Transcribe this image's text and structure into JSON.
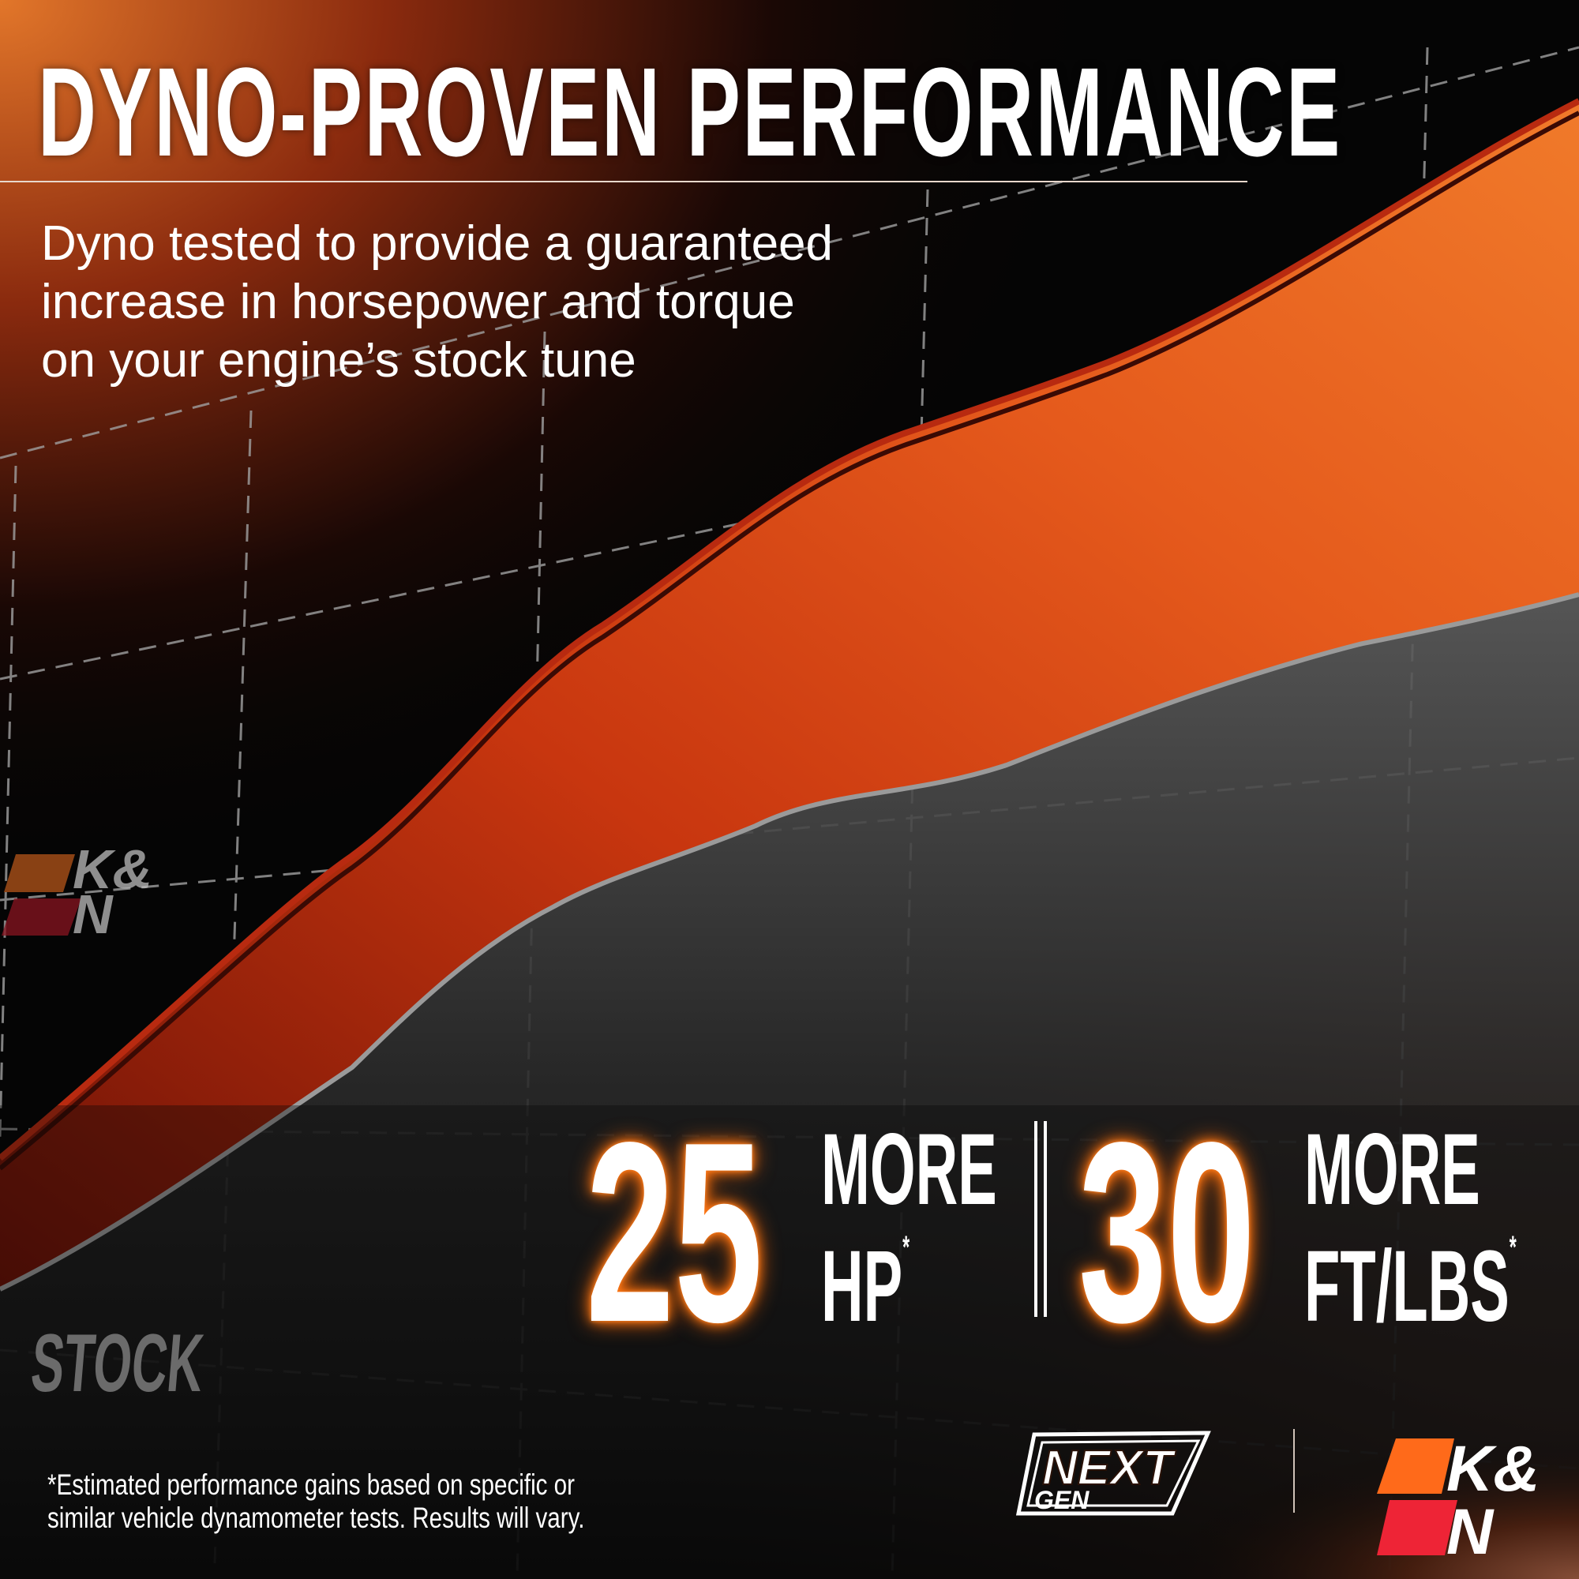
{
  "header": {
    "title": "DYNO-PROVEN PERFORMANCE",
    "subtitle_lines": [
      "Dyno tested to provide a guaranteed",
      "increase in horsepower and torque",
      "on your engine’s stock tune"
    ]
  },
  "chart": {
    "stock_label": "STOCK",
    "colors": {
      "upgrade_band": "#e2461a",
      "stock_band": "#3a3a3a",
      "grid": "#9a9a9a"
    }
  },
  "stats": [
    {
      "value": "25",
      "line1": "MORE",
      "line2": "HP",
      "mark": "*"
    },
    {
      "value": "30",
      "line1": "MORE",
      "line2": "FT/LBS",
      "mark": "*"
    }
  ],
  "footnote": {
    "line1": "*Estimated performance gains based on specific or",
    "line2": "similar vehicle dynamometer tests. Results will vary."
  },
  "logos": {
    "nextgen": "NEXT GEN",
    "kn": "K&N",
    "colors": {
      "kn_orange": "#ff6a1a",
      "kn_red": "#ee2436"
    }
  }
}
